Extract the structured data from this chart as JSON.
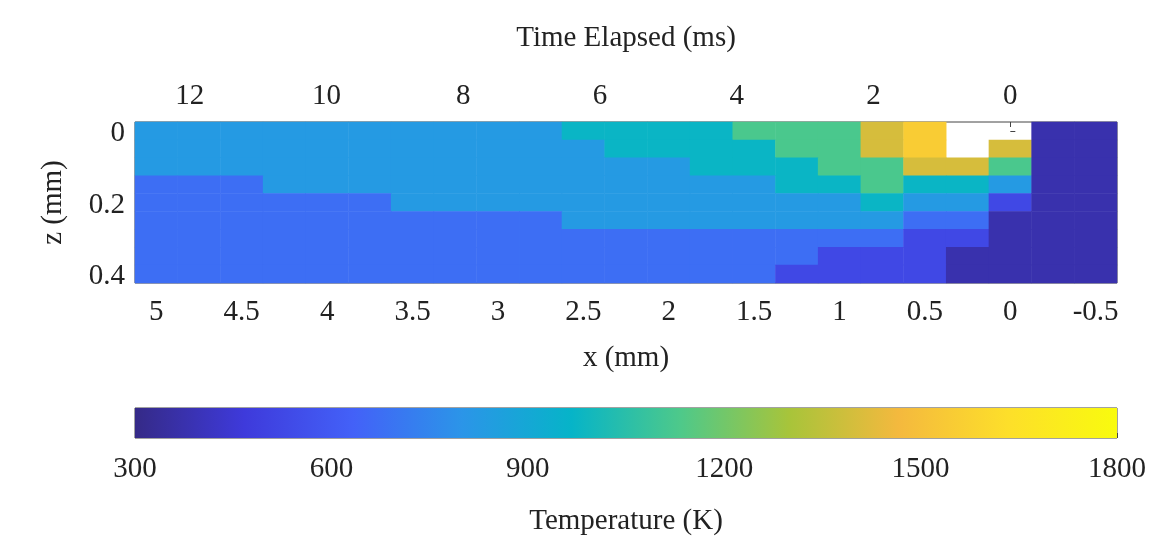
{
  "chart_data": {
    "type": "heatmap",
    "xlabel": "x (mm)",
    "ylabel": "z (mm)",
    "x2label": "Time Elapsed (ms)",
    "clabel": "Temperature (K)",
    "categories": [
      "5",
      null,
      "4.5",
      null,
      "4",
      null,
      "3.5",
      null,
      "3",
      null,
      "2.5",
      null,
      "2",
      null,
      "1.5",
      null,
      "1",
      null,
      "0.5",
      null,
      "0",
      null,
      "-0.5"
    ],
    "y_categories": [
      "0",
      null,
      null,
      null,
      "0.2",
      null,
      null,
      null,
      "0.4"
    ],
    "cells": [
      [
        825,
        825,
        825,
        825,
        825,
        825,
        825,
        825,
        825,
        825,
        975,
        975,
        975,
        975,
        1125,
        1125,
        1125,
        1400,
        1550,
        null,
        null,
        375,
        375
      ],
      [
        825,
        825,
        825,
        825,
        825,
        825,
        825,
        825,
        825,
        825,
        825,
        975,
        975,
        975,
        975,
        1125,
        1125,
        1400,
        1550,
        null,
        1400,
        375,
        375
      ],
      [
        825,
        825,
        825,
        825,
        825,
        825,
        825,
        825,
        825,
        825,
        825,
        825,
        825,
        975,
        975,
        975,
        1125,
        1125,
        1400,
        1400,
        1125,
        375,
        375
      ],
      [
        675,
        675,
        675,
        825,
        825,
        825,
        825,
        825,
        825,
        825,
        825,
        825,
        825,
        825,
        825,
        975,
        975,
        1125,
        975,
        975,
        825,
        375,
        375
      ],
      [
        675,
        675,
        675,
        675,
        675,
        675,
        825,
        825,
        825,
        825,
        825,
        825,
        825,
        825,
        825,
        825,
        825,
        975,
        825,
        825,
        525,
        375,
        375
      ],
      [
        675,
        675,
        675,
        675,
        675,
        675,
        675,
        675,
        675,
        675,
        825,
        825,
        825,
        825,
        825,
        825,
        825,
        825,
        675,
        675,
        375,
        375,
        375
      ],
      [
        675,
        675,
        675,
        675,
        675,
        675,
        675,
        675,
        675,
        675,
        675,
        675,
        675,
        675,
        675,
        675,
        675,
        675,
        525,
        525,
        375,
        375,
        375
      ],
      [
        675,
        675,
        675,
        675,
        675,
        675,
        675,
        675,
        675,
        675,
        675,
        675,
        675,
        675,
        675,
        675,
        525,
        525,
        525,
        375,
        375,
        375,
        375
      ],
      [
        675,
        675,
        675,
        675,
        675,
        675,
        675,
        675,
        675,
        675,
        675,
        675,
        675,
        675,
        675,
        525,
        525,
        525,
        525,
        375,
        375,
        375,
        375
      ]
    ],
    "clim": [
      300,
      1800
    ],
    "cticks": [
      300,
      600,
      900,
      1200,
      1500,
      1800
    ],
    "x2lim": [
      12.8,
      -1.56
    ],
    "x2ticks": [
      12,
      10,
      8,
      6,
      4,
      2,
      0
    ]
  }
}
